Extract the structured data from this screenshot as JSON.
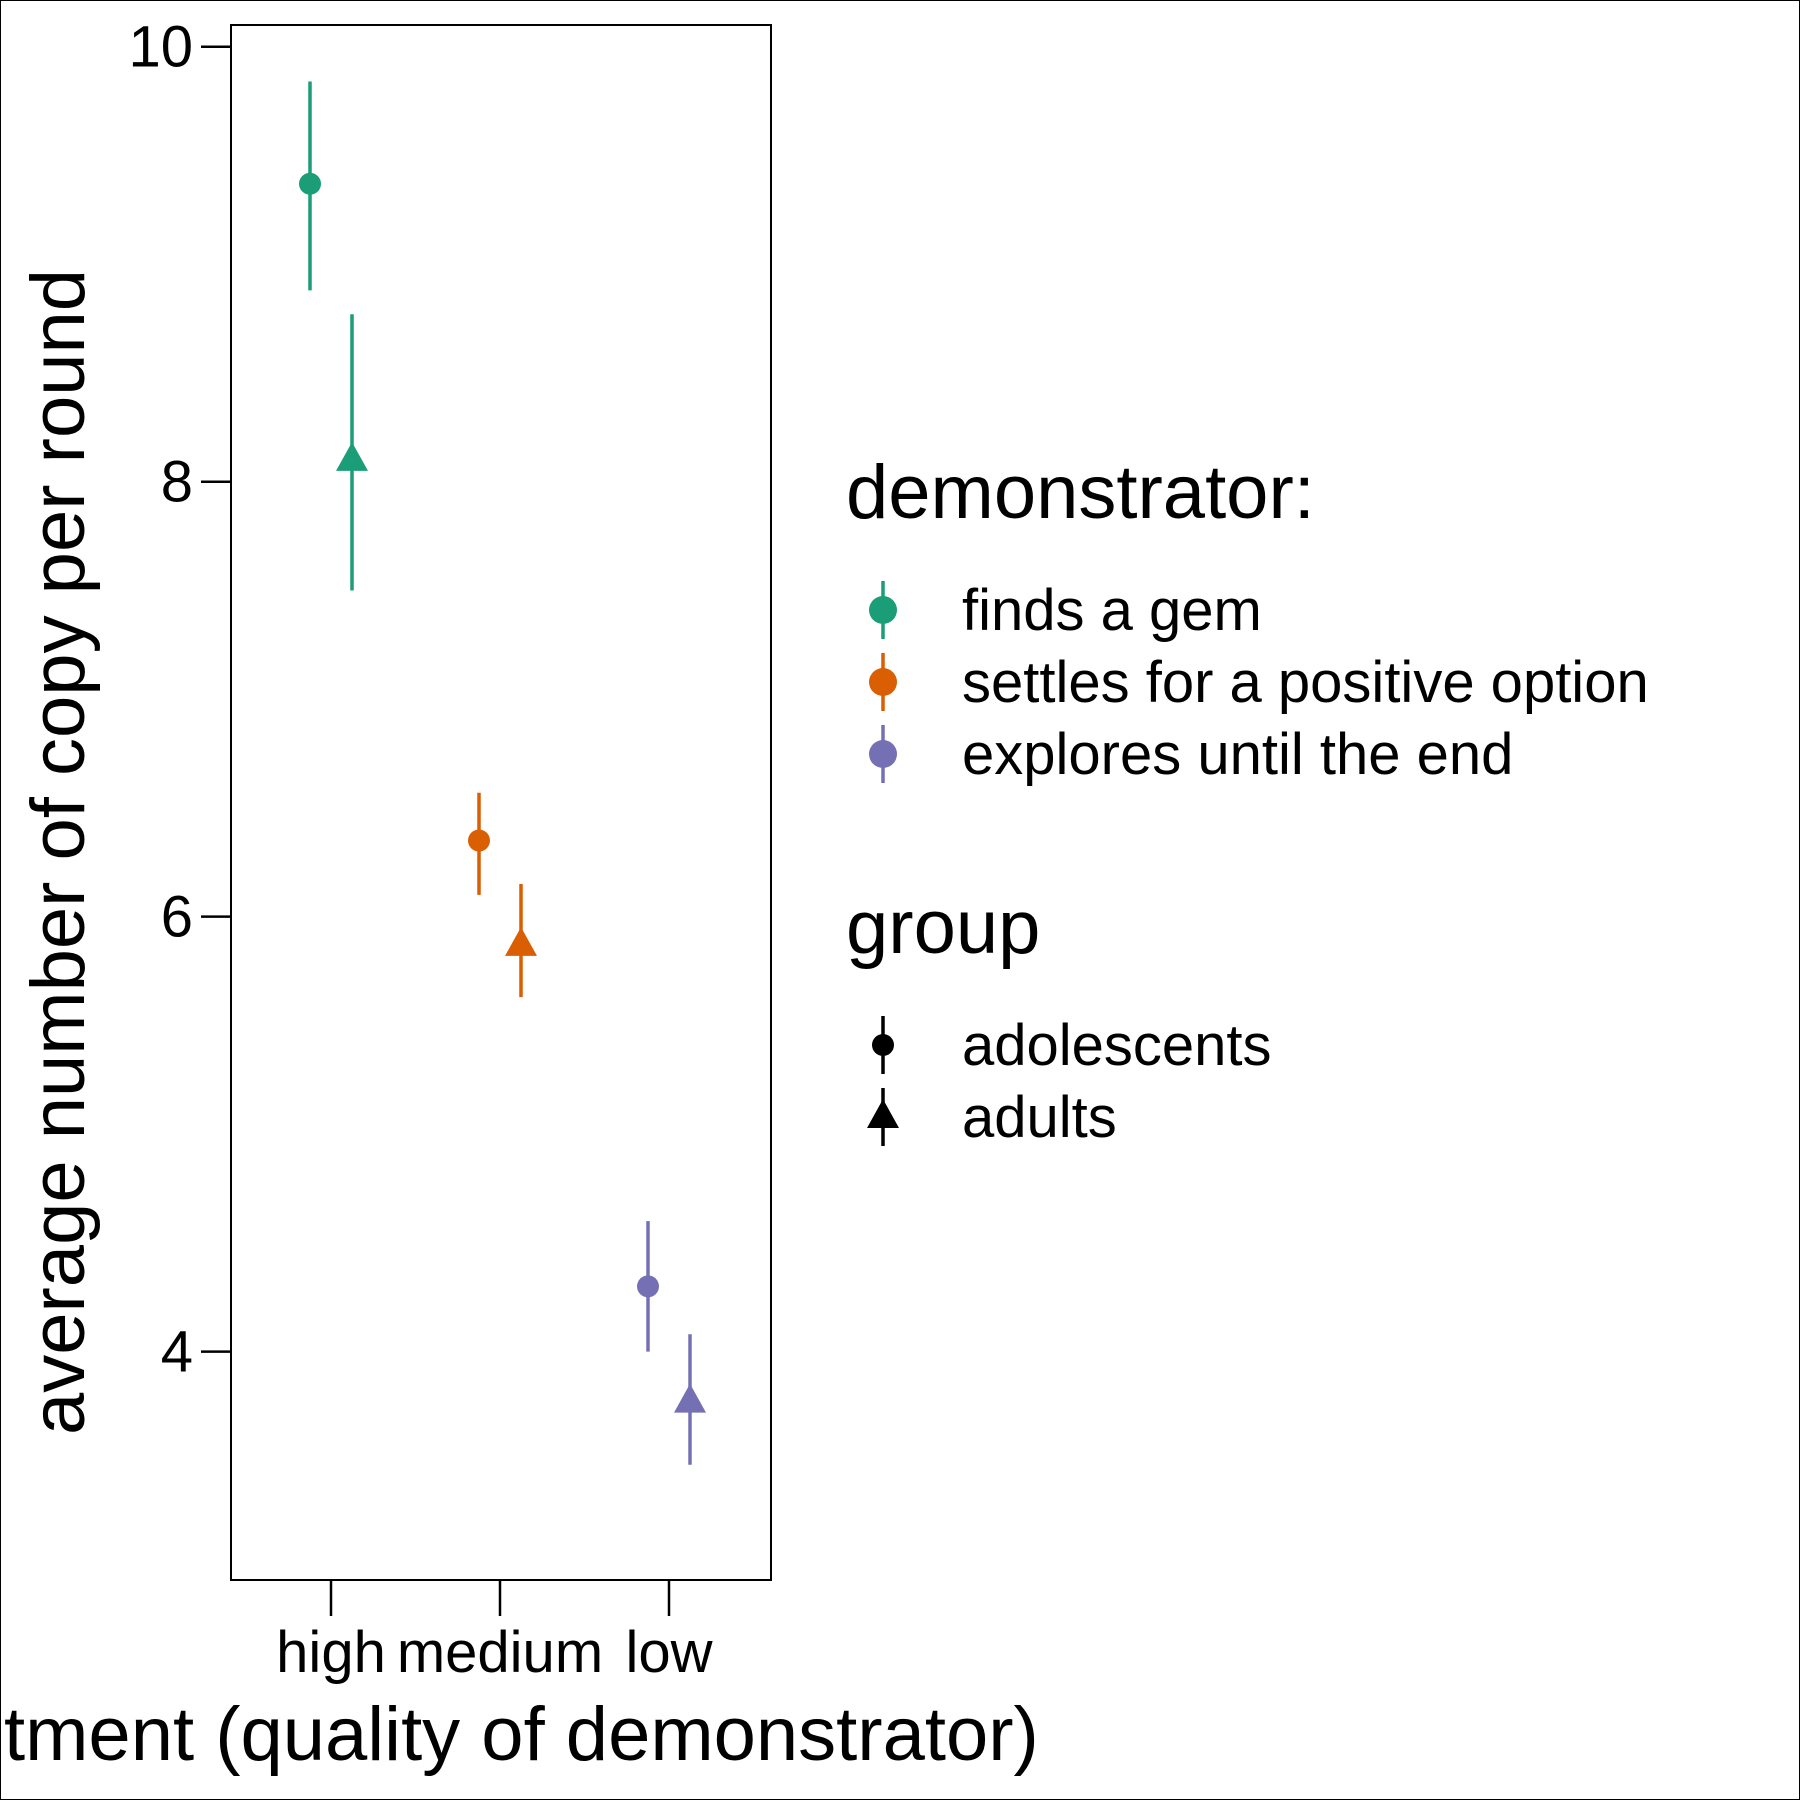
{
  "chart_data": {
    "type": "scatter",
    "xlabel": "tment (quality of demonstrator)",
    "ylabel": "average number of copy per round",
    "categories": [
      "high",
      "medium",
      "low"
    ],
    "ylim": [
      2.95,
      10.1
    ],
    "yticks": [
      4,
      6,
      8,
      10
    ],
    "grid": false,
    "legend_position": "right",
    "legends": [
      {
        "title": "demonstrator:",
        "entries": [
          {
            "label": "finds a gem",
            "color": "#1b9e77"
          },
          {
            "label": "settles for a positive option",
            "color": "#d95f02"
          },
          {
            "label": "explores until the end",
            "color": "#7570b3"
          }
        ]
      },
      {
        "title": "group",
        "entries": [
          {
            "label": "adolescents",
            "shape": "circle"
          },
          {
            "label": "adults",
            "shape": "triangle"
          }
        ]
      }
    ],
    "series": [
      {
        "name": "adolescents",
        "shape": "circle",
        "points": [
          {
            "x": "high",
            "y": 9.37,
            "lo": 8.88,
            "hi": 9.84,
            "demonstrator": "finds a gem"
          },
          {
            "x": "medium",
            "y": 6.35,
            "lo": 6.1,
            "hi": 6.57,
            "demonstrator": "settles for a positive option"
          },
          {
            "x": "low",
            "y": 4.3,
            "lo": 4.0,
            "hi": 4.6,
            "demonstrator": "explores until the end"
          }
        ]
      },
      {
        "name": "adults",
        "shape": "triangle",
        "points": [
          {
            "x": "high",
            "y": 8.1,
            "lo": 7.5,
            "hi": 8.77,
            "demonstrator": "finds a gem"
          },
          {
            "x": "medium",
            "y": 5.87,
            "lo": 5.63,
            "hi": 6.15,
            "demonstrator": "settles for a positive option"
          },
          {
            "x": "low",
            "y": 3.77,
            "lo": 3.48,
            "hi": 4.08,
            "demonstrator": "explores until the end"
          }
        ]
      }
    ]
  }
}
